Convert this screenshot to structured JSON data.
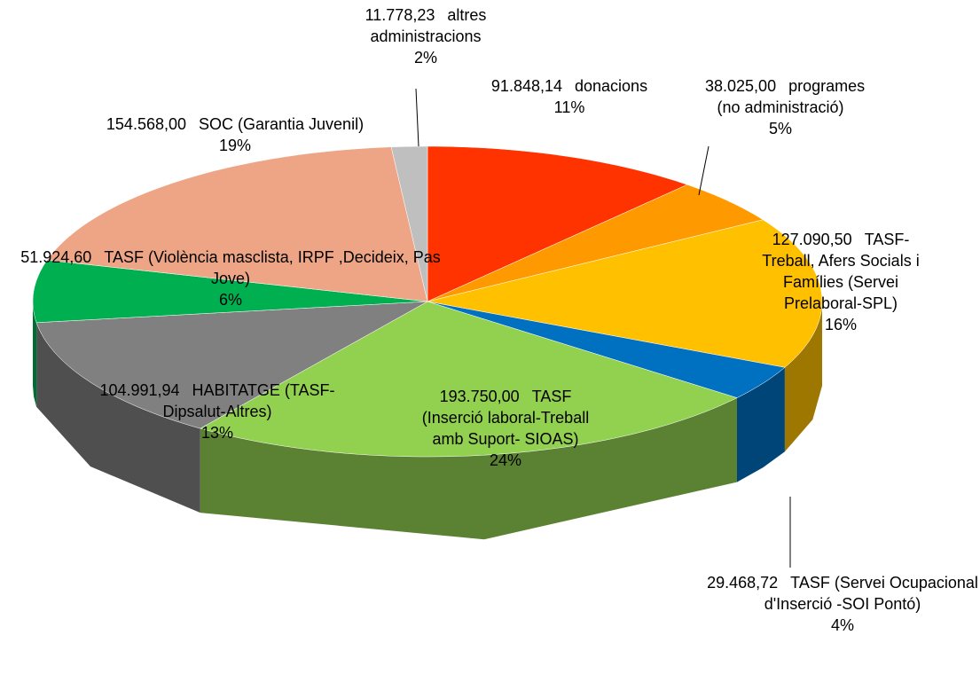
{
  "chart_data": {
    "type": "pie3d",
    "categories": [
      "donacions",
      "programes (no administració)",
      "TASF-Treball, Afers Socials i Famílies (Servei Prelaboral-SPL)",
      "TASF (Servei Ocupacional d'Inserció -SOI Pontó)",
      "TASF (Inserció laboral-Treball amb Suport- SIOAS)",
      "HABITATGE (TASF-Dipsalut-Altres)",
      "TASF (Violència masclista, IRPF ,Decideix, Pas Jove)",
      "SOC (Garantia Juvenil)",
      "altres administracions"
    ],
    "values": [
      91848.14,
      38025.0,
      127090.5,
      29468.72,
      193750.0,
      104991.94,
      51924.6,
      154568.0,
      11778.23
    ],
    "value_labels": [
      "91.848,14",
      "38.025,00",
      "127.090,50",
      "29.468,72",
      "193.750,00",
      "104.991,94",
      "51.924,60",
      "154.568,00",
      "11.778,23"
    ],
    "percent_labels": [
      "11%",
      "5%",
      "16%",
      "4%",
      "24%",
      "13%",
      "6%",
      "19%",
      "2%"
    ],
    "colors": [
      "#ff3300",
      "#ff9900",
      "#ffc000",
      "#0070c0",
      "#92d050",
      "#808080",
      "#00b050",
      "#eda586",
      "#bfbfbf"
    ]
  }
}
